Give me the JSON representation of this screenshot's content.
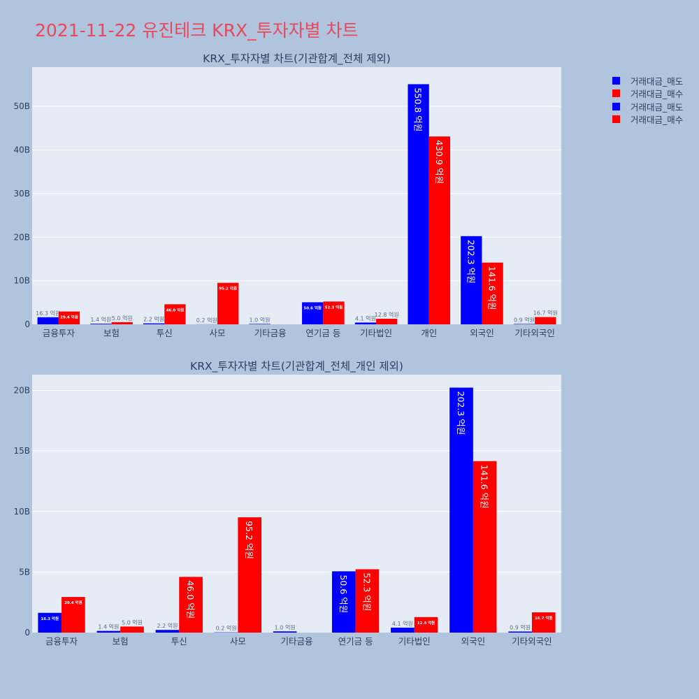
{
  "page": {
    "title": "2021-11-22 유진테크 KRX_투자자별 차트"
  },
  "legend": [
    {
      "label": "거래대금_매도",
      "color": "#0000ff"
    },
    {
      "label": "거래대금_매수",
      "color": "#ff0000"
    },
    {
      "label": "거래대금_매도",
      "color": "#0000ff"
    },
    {
      "label": "거래대금_매수",
      "color": "#ff0000"
    }
  ],
  "chart_data": [
    {
      "type": "bar",
      "title": "KRX_투자자별 차트(기관합계_전체 제외)",
      "categories": [
        "금융투자",
        "보험",
        "투신",
        "사모",
        "기타금융",
        "연기금 등",
        "기타법인",
        "개인",
        "외국인",
        "기타외국인"
      ],
      "ylim": [
        0,
        59000000000
      ],
      "yticks": [
        0,
        10000000000,
        20000000000,
        30000000000,
        40000000000,
        50000000000
      ],
      "yticklabels": [
        "0",
        "10B",
        "20B",
        "30B",
        "40B",
        "50B"
      ],
      "grid": true,
      "series": [
        {
          "name": "거래대금_매도",
          "color": "#0000ff",
          "values": [
            1630000000,
            140000000,
            220000000,
            20000000,
            100000000,
            5060000000,
            410000000,
            55080000000,
            20230000000,
            90000000
          ],
          "labels": [
            "16.3 억원",
            "1.4 억원",
            "2.2 억원",
            "0.2 억원",
            "1.0 억원",
            "50.6 억원",
            "4.1 억원",
            "550.8 억원",
            "202.3 억원",
            "0.9 억원"
          ]
        },
        {
          "name": "거래대금_매수",
          "color": "#ff0000",
          "values": [
            2940000000,
            500000000,
            4600000000,
            9520000000,
            0,
            5230000000,
            1280000000,
            43090000000,
            14160000000,
            1670000000
          ],
          "labels": [
            "29.4 억원",
            "5.0 억원",
            "46.0 억원",
            "95.2 억원",
            "",
            "52.3 억원",
            "12.8 억원",
            "430.9 억원",
            "141.6 억원",
            "16.7 억원"
          ]
        }
      ]
    },
    {
      "type": "bar",
      "title": "KRX_투자자별 차트(기관합계_전체_개인 제외)",
      "categories": [
        "금융투자",
        "보험",
        "투신",
        "사모",
        "기타금융",
        "연기금 등",
        "기타법인",
        "외국인",
        "기타외국인"
      ],
      "ylim": [
        0,
        21300000000
      ],
      "yticks": [
        0,
        5000000000,
        10000000000,
        15000000000,
        20000000000
      ],
      "yticklabels": [
        "0",
        "5B",
        "10B",
        "15B",
        "20B"
      ],
      "grid": true,
      "series": [
        {
          "name": "거래대금_매도",
          "color": "#0000ff",
          "values": [
            1630000000,
            140000000,
            220000000,
            20000000,
            100000000,
            5060000000,
            410000000,
            20230000000,
            90000000
          ],
          "labels": [
            "16.3 억원",
            "1.4 억원",
            "2.2 억원",
            "0.2 억원",
            "1.0 억원",
            "50.6 억원",
            "4.1 억원",
            "202.3 억원",
            "0.9 억원"
          ]
        },
        {
          "name": "거래대금_매수",
          "color": "#ff0000",
          "values": [
            2940000000,
            500000000,
            4600000000,
            9520000000,
            0,
            5230000000,
            1280000000,
            14160000000,
            1670000000
          ],
          "labels": [
            "29.4 억원",
            "5.0 억원",
            "46.0 억원",
            "95.2 억원",
            "",
            "52.3 억원",
            "12.8 억원",
            "141.6 억원",
            "16.7 억원"
          ]
        }
      ]
    }
  ]
}
